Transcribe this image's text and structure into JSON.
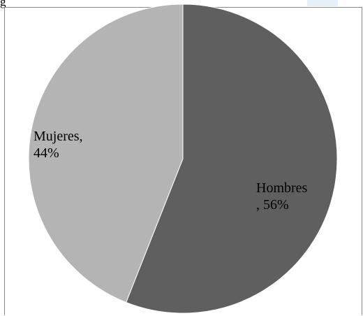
{
  "top_fragment": "g",
  "chart_data": {
    "type": "pie",
    "categories": [
      "Hombres",
      "Mujeres"
    ],
    "values": [
      56,
      44
    ],
    "unit": "%",
    "colors": [
      "#5f5f5f",
      "#b4b4b4"
    ],
    "data_labels": [
      "Hombres\n, 56%",
      "Mujeres,\n44%"
    ],
    "start_angle_deg": 0,
    "direction": "clockwise",
    "title": "",
    "legend": "none"
  }
}
